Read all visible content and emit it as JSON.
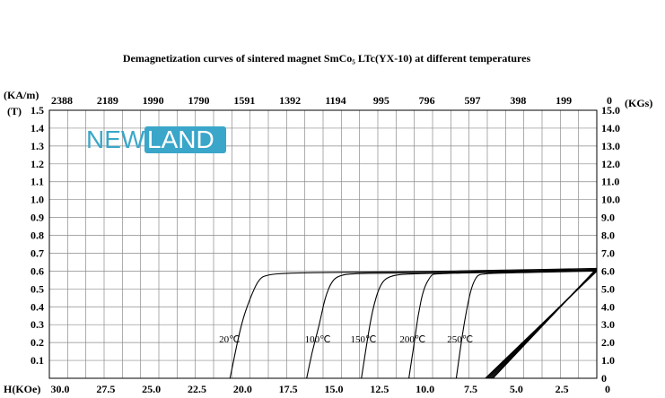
{
  "chart_data": {
    "type": "line",
    "title": "Demagnetization curves of sintered magnet SmCo₅ LTc(YX-10) at different temperatures",
    "logo": {
      "part1": "NEW",
      "part2": "LAND",
      "colors": {
        "primary": "#3aa6c9",
        "box_text": "#ffffff"
      }
    },
    "x_axis": {
      "label": "H(KOe)",
      "range": [
        30.0,
        0
      ],
      "ticks": [
        30.0,
        27.5,
        25.0,
        22.5,
        20.0,
        17.5,
        15.0,
        12.5,
        10.0,
        7.5,
        5.0,
        2.5,
        0
      ],
      "tick_labels": [
        "30.0",
        "27.5",
        "25.0",
        "22.5",
        "20.0",
        "17.5",
        "15.0",
        "12.5",
        "10.0",
        "7.5",
        "5.0",
        "2.5",
        "0"
      ]
    },
    "x_axis_top": {
      "label": "(KA/m)",
      "ticks": [
        2388,
        2189,
        1990,
        1790,
        1591,
        1392,
        1194,
        995,
        796,
        597,
        398,
        199,
        0
      ],
      "tick_labels": [
        "2388",
        "2189",
        "1990",
        "1790",
        "1591",
        "1392",
        "1194",
        "995",
        "796",
        "597",
        "398",
        "199",
        "0"
      ]
    },
    "y_axis_left": {
      "label": "(T)",
      "range": [
        0,
        1.5
      ],
      "tick_labels": [
        "1.5",
        "1.4",
        "1.3",
        "1.2",
        "1.1",
        "1.0",
        "0.9",
        "0.8",
        "0.7",
        "0.6",
        "0.5",
        "0.4",
        "0.3",
        "0.2",
        "0.1"
      ]
    },
    "y_axis_right": {
      "label": "(KGs)",
      "range": [
        0,
        15.0
      ],
      "tick_labels": [
        "15.0",
        "14.0",
        "13.0",
        "12.0",
        "11.0",
        "10.0",
        "9.0",
        "8.0",
        "7.0",
        "6.0",
        "5.0",
        "4.0",
        "3.0",
        "2.0",
        "1.0",
        "0"
      ]
    },
    "grid": true,
    "series": [
      {
        "name": "20℃",
        "type": "J",
        "points": [
          [
            0,
            0.615
          ],
          [
            5,
            0.605
          ],
          [
            10,
            0.597
          ],
          [
            14,
            0.593
          ],
          [
            17,
            0.589
          ],
          [
            18.0,
            0.58
          ],
          [
            18.5,
            0.56
          ],
          [
            19.0,
            0.45
          ],
          [
            19.5,
            0.3
          ],
          [
            20.1,
            0.0
          ]
        ]
      },
      {
        "name": "100℃",
        "type": "J",
        "points": [
          [
            0,
            0.61
          ],
          [
            5,
            0.6
          ],
          [
            10,
            0.59
          ],
          [
            13,
            0.587
          ],
          [
            14.0,
            0.58
          ],
          [
            14.5,
            0.55
          ],
          [
            14.9,
            0.45
          ],
          [
            15.2,
            0.3
          ],
          [
            15.6,
            0.15
          ],
          [
            15.9,
            0.0
          ]
        ]
      },
      {
        "name": "150℃",
        "type": "J",
        "points": [
          [
            0,
            0.607
          ],
          [
            5,
            0.596
          ],
          [
            10,
            0.587
          ],
          [
            11.4,
            0.575
          ],
          [
            11.9,
            0.52
          ],
          [
            12.3,
            0.38
          ],
          [
            12.6,
            0.2
          ],
          [
            12.9,
            0.0
          ]
        ]
      },
      {
        "name": "200℃",
        "type": "J",
        "points": [
          [
            0,
            0.605
          ],
          [
            5,
            0.594
          ],
          [
            8.9,
            0.586
          ],
          [
            9.1,
            0.575
          ],
          [
            9.5,
            0.5
          ],
          [
            9.8,
            0.35
          ],
          [
            10.0,
            0.2
          ],
          [
            10.3,
            0.0
          ]
        ]
      },
      {
        "name": "250℃",
        "type": "J",
        "points": [
          [
            0,
            0.6
          ],
          [
            5,
            0.59
          ],
          [
            6.3,
            0.585
          ],
          [
            6.6,
            0.572
          ],
          [
            6.9,
            0.5
          ],
          [
            7.2,
            0.35
          ],
          [
            7.5,
            0.15
          ],
          [
            7.7,
            0.0
          ]
        ]
      },
      {
        "type": "B",
        "points": [
          [
            0,
            0.615
          ],
          [
            5.7,
            0.0
          ]
        ]
      },
      {
        "type": "B",
        "points": [
          [
            0,
            0.61
          ],
          [
            5.8,
            0.0
          ]
        ]
      },
      {
        "type": "B",
        "points": [
          [
            0,
            0.607
          ],
          [
            5.9,
            0.0
          ]
        ]
      },
      {
        "type": "B",
        "points": [
          [
            0,
            0.605
          ],
          [
            6.0,
            0.0
          ]
        ]
      },
      {
        "type": "B",
        "points": [
          [
            0,
            0.6
          ],
          [
            6.1,
            0.0
          ]
        ]
      }
    ],
    "curve_labels": [
      {
        "text": "20℃",
        "x": 20.7,
        "y": 0.22
      },
      {
        "text": "100℃",
        "x": 16.0,
        "y": 0.22
      },
      {
        "text": "150℃",
        "x": 13.5,
        "y": 0.22
      },
      {
        "text": "200℃",
        "x": 10.8,
        "y": 0.22
      },
      {
        "text": "250℃",
        "x": 8.2,
        "y": 0.22
      }
    ]
  }
}
